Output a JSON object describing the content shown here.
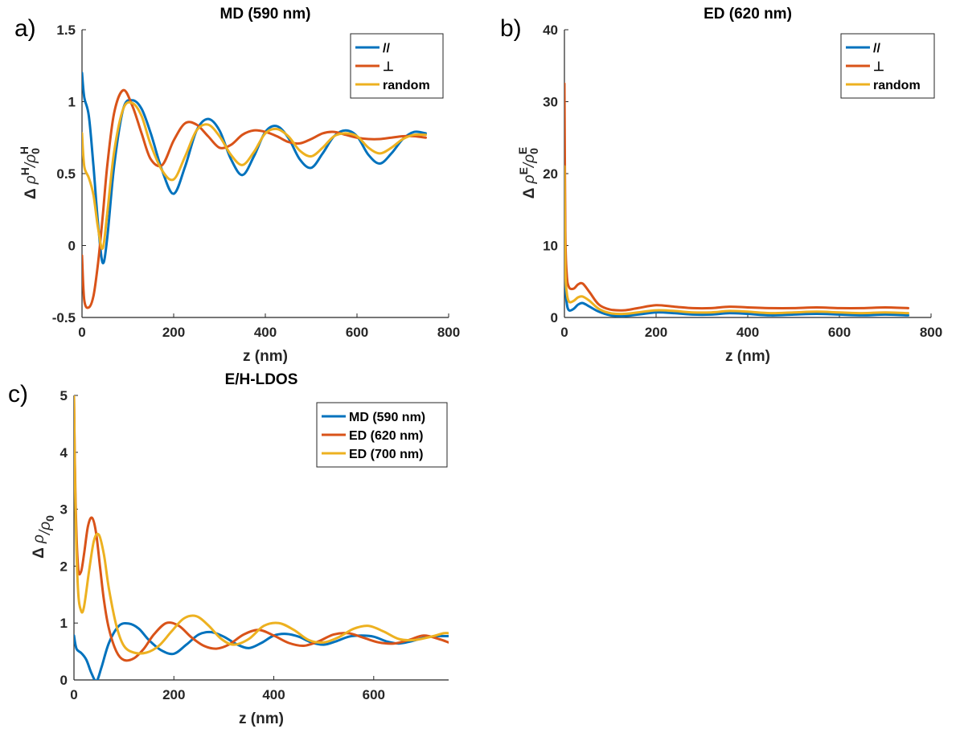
{
  "colors": {
    "parallel": "#0072BD",
    "perp": "#D95319",
    "random": "#EDB120",
    "axis": "#262626"
  },
  "chart_data": [
    {
      "type": "line",
      "panel_label": "a)",
      "title": "MD (590 nm)",
      "xlabel": "z (nm)",
      "ylabel": {
        "prefix": "Δ ",
        "rho": "ρ",
        "sup": "H",
        "slash": "/",
        "rho0": "ρ",
        "sub": "0",
        "sup2": "H"
      },
      "xlim": [
        0,
        800
      ],
      "ylim": [
        -0.5,
        1.5
      ],
      "xticks": [
        0,
        200,
        400,
        600,
        800
      ],
      "yticks": [
        -0.5,
        0,
        0.5,
        1,
        1.5
      ],
      "xtick_labels": [
        "0",
        "200",
        "400",
        "600",
        "800"
      ],
      "ytick_labels": [
        "-0.5",
        "0",
        "0.5",
        "1",
        "1.5"
      ],
      "legend": "top-right",
      "series": [
        {
          "name": "//",
          "color": "#0072BD",
          "x": [
            0,
            5,
            15,
            25,
            35,
            45,
            55,
            70,
            90,
            110,
            130,
            150,
            175,
            200,
            225,
            250,
            275,
            300,
            325,
            350,
            375,
            400,
            425,
            450,
            475,
            500,
            525,
            550,
            575,
            600,
            625,
            650,
            675,
            700,
            725,
            750
          ],
          "y": [
            1.2,
            1.03,
            0.9,
            0.55,
            0.15,
            -0.12,
            0.05,
            0.55,
            0.95,
            1.01,
            0.95,
            0.78,
            0.52,
            0.36,
            0.55,
            0.8,
            0.88,
            0.8,
            0.6,
            0.49,
            0.62,
            0.79,
            0.83,
            0.75,
            0.6,
            0.54,
            0.64,
            0.76,
            0.8,
            0.76,
            0.63,
            0.57,
            0.64,
            0.74,
            0.79,
            0.78
          ]
        },
        {
          "name": "⊥",
          "color": "#D95319",
          "x": [
            0,
            5,
            15,
            25,
            35,
            45,
            55,
            70,
            90,
            110,
            130,
            150,
            175,
            200,
            225,
            250,
            275,
            300,
            325,
            350,
            375,
            400,
            425,
            450,
            475,
            500,
            525,
            550,
            575,
            600,
            625,
            650,
            675,
            700,
            725,
            750
          ],
          "y": [
            -0.07,
            -0.38,
            -0.43,
            -0.35,
            -0.12,
            0.2,
            0.55,
            0.92,
            1.08,
            0.97,
            0.78,
            0.6,
            0.56,
            0.73,
            0.85,
            0.84,
            0.76,
            0.68,
            0.7,
            0.77,
            0.8,
            0.79,
            0.76,
            0.72,
            0.71,
            0.74,
            0.78,
            0.79,
            0.77,
            0.75,
            0.74,
            0.74,
            0.75,
            0.76,
            0.76,
            0.75
          ]
        },
        {
          "name": "random",
          "color": "#EDB120",
          "x": [
            0,
            5,
            15,
            25,
            35,
            45,
            55,
            70,
            90,
            110,
            130,
            150,
            175,
            200,
            225,
            250,
            275,
            300,
            325,
            350,
            375,
            400,
            425,
            450,
            475,
            500,
            525,
            550,
            575,
            600,
            625,
            650,
            675,
            700,
            725,
            750
          ],
          "y": [
            0.78,
            0.55,
            0.47,
            0.35,
            0.12,
            -0.02,
            0.22,
            0.65,
            0.95,
            0.99,
            0.9,
            0.7,
            0.52,
            0.46,
            0.62,
            0.8,
            0.84,
            0.76,
            0.63,
            0.56,
            0.65,
            0.78,
            0.81,
            0.76,
            0.66,
            0.62,
            0.68,
            0.76,
            0.78,
            0.76,
            0.68,
            0.64,
            0.68,
            0.74,
            0.77,
            0.77
          ]
        }
      ]
    },
    {
      "type": "line",
      "panel_label": "b)",
      "title": "ED (620 nm)",
      "xlabel": "z (nm)",
      "ylabel": {
        "prefix": "Δ ",
        "rho": "ρ",
        "sup": "E",
        "slash": "/",
        "rho0": "ρ",
        "sub": "0",
        "sup2": "E"
      },
      "xlim": [
        0,
        800
      ],
      "ylim": [
        0,
        40
      ],
      "xticks": [
        0,
        200,
        400,
        600,
        800
      ],
      "yticks": [
        0,
        10,
        20,
        30,
        40
      ],
      "xtick_labels": [
        "0",
        "200",
        "400",
        "600",
        "800"
      ],
      "ytick_labels": [
        "0",
        "10",
        "20",
        "30",
        "40"
      ],
      "legend": "top-right",
      "series": [
        {
          "name": "//",
          "color": "#0072BD",
          "x": [
            0,
            2,
            5,
            10,
            20,
            30,
            40,
            55,
            75,
            100,
            130,
            160,
            200,
            240,
            280,
            320,
            360,
            400,
            450,
            500,
            550,
            600,
            650,
            700,
            750
          ],
          "y": [
            15,
            5,
            2,
            1.0,
            1.2,
            1.8,
            2.0,
            1.5,
            0.8,
            0.3,
            0.2,
            0.4,
            0.7,
            0.6,
            0.4,
            0.4,
            0.6,
            0.5,
            0.3,
            0.4,
            0.5,
            0.4,
            0.3,
            0.4,
            0.3
          ]
        },
        {
          "name": "⊥",
          "color": "#D95319",
          "x": [
            0,
            2,
            5,
            10,
            20,
            30,
            40,
            55,
            75,
            100,
            130,
            160,
            200,
            240,
            280,
            320,
            360,
            400,
            450,
            500,
            550,
            600,
            650,
            700,
            750
          ],
          "y": [
            32.5,
            12,
            6,
            4.2,
            4.0,
            4.6,
            4.7,
            3.5,
            1.8,
            1.1,
            1.0,
            1.3,
            1.7,
            1.5,
            1.3,
            1.3,
            1.5,
            1.4,
            1.3,
            1.3,
            1.4,
            1.3,
            1.3,
            1.4,
            1.3
          ]
        },
        {
          "name": "random",
          "color": "#EDB120",
          "x": [
            0,
            2,
            5,
            10,
            20,
            30,
            40,
            55,
            75,
            100,
            130,
            160,
            200,
            240,
            280,
            320,
            360,
            400,
            450,
            500,
            550,
            600,
            650,
            700,
            750
          ],
          "y": [
            21,
            7,
            3.5,
            2.2,
            2.3,
            2.8,
            2.9,
            2.3,
            1.2,
            0.6,
            0.5,
            0.7,
            1.0,
            0.9,
            0.7,
            0.7,
            0.9,
            0.8,
            0.6,
            0.7,
            0.8,
            0.7,
            0.6,
            0.7,
            0.6
          ]
        }
      ]
    },
    {
      "type": "line",
      "panel_label": "c)",
      "title": "E/H-LDOS",
      "xlabel": "z (nm)",
      "ylabel": {
        "prefix": "Δ ",
        "rho": "ρ",
        "sup": "",
        "slash": "/",
        "rho0": "ρ",
        "sub": "0",
        "sup2": ""
      },
      "xlim": [
        0,
        750
      ],
      "ylim": [
        0,
        5
      ],
      "xticks": [
        0,
        200,
        400,
        600
      ],
      "yticks": [
        0,
        1,
        2,
        3,
        4,
        5
      ],
      "xtick_labels": [
        "0",
        "200",
        "400",
        "600"
      ],
      "ytick_labels": [
        "0",
        "1",
        "2",
        "3",
        "4",
        "5"
      ],
      "legend": "top-right",
      "series": [
        {
          "name": "MD (590 nm)",
          "color": "#0072BD",
          "x": [
            0,
            5,
            15,
            25,
            35,
            45,
            55,
            70,
            90,
            110,
            130,
            150,
            175,
            200,
            225,
            250,
            275,
            300,
            325,
            350,
            375,
            400,
            425,
            450,
            475,
            500,
            525,
            550,
            575,
            600,
            625,
            650,
            675,
            700,
            725,
            750
          ],
          "y": [
            0.78,
            0.55,
            0.47,
            0.35,
            0.12,
            -0.02,
            0.22,
            0.65,
            0.95,
            0.99,
            0.9,
            0.7,
            0.52,
            0.46,
            0.62,
            0.8,
            0.84,
            0.76,
            0.63,
            0.56,
            0.65,
            0.78,
            0.81,
            0.76,
            0.66,
            0.62,
            0.68,
            0.76,
            0.78,
            0.76,
            0.68,
            0.64,
            0.68,
            0.74,
            0.77,
            0.77
          ]
        },
        {
          "name": "ED (620 nm)",
          "color": "#D95319",
          "x": [
            0,
            3,
            8,
            14,
            20,
            28,
            36,
            44,
            52,
            60,
            70,
            85,
            100,
            120,
            140,
            160,
            185,
            210,
            235,
            260,
            285,
            310,
            340,
            370,
            400,
            430,
            460,
            490,
            520,
            550,
            580,
            610,
            640,
            670,
            700,
            730,
            750
          ],
          "y": [
            5,
            3.2,
            2.0,
            1.9,
            2.2,
            2.7,
            2.85,
            2.6,
            2.0,
            1.4,
            0.9,
            0.5,
            0.35,
            0.38,
            0.55,
            0.8,
            1.0,
            0.95,
            0.75,
            0.6,
            0.55,
            0.62,
            0.8,
            0.88,
            0.78,
            0.65,
            0.6,
            0.68,
            0.8,
            0.82,
            0.74,
            0.66,
            0.64,
            0.7,
            0.78,
            0.72,
            0.66
          ]
        },
        {
          "name": "ED (700 nm)",
          "color": "#EDB120",
          "x": [
            0,
            3,
            8,
            14,
            20,
            30,
            40,
            50,
            60,
            70,
            85,
            100,
            120,
            145,
            170,
            195,
            220,
            245,
            270,
            295,
            320,
            350,
            380,
            410,
            440,
            470,
            500,
            530,
            560,
            590,
            620,
            650,
            680,
            710,
            740,
            750
          ],
          "y": [
            5,
            3.0,
            1.6,
            1.22,
            1.28,
            1.9,
            2.45,
            2.55,
            2.2,
            1.6,
            0.95,
            0.6,
            0.48,
            0.48,
            0.6,
            0.85,
            1.08,
            1.12,
            0.95,
            0.72,
            0.62,
            0.72,
            0.95,
            1.0,
            0.88,
            0.7,
            0.66,
            0.75,
            0.9,
            0.95,
            0.85,
            0.72,
            0.7,
            0.75,
            0.82,
            0.82
          ]
        }
      ]
    }
  ]
}
